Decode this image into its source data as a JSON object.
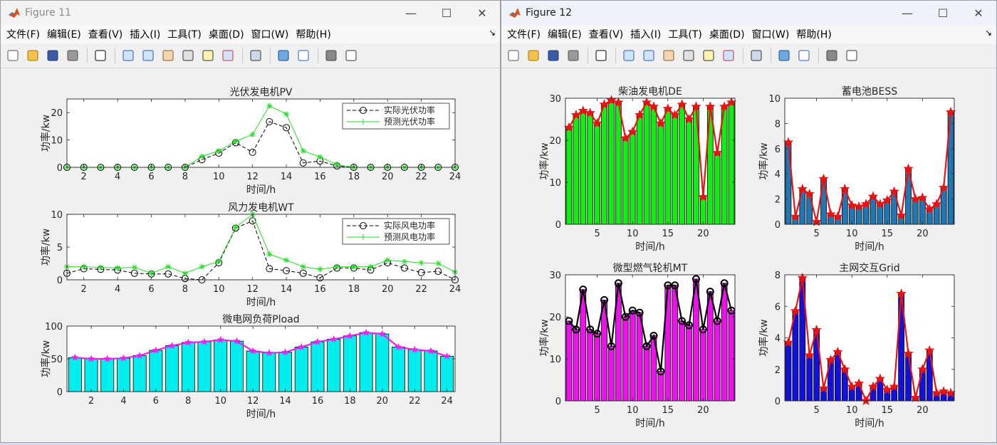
{
  "menu_items": [
    "文件(F)",
    "编辑(E)",
    "查看(V)",
    "插入(I)",
    "工具(T)",
    "桌面(D)",
    "窗口(W)",
    "帮助(H)"
  ],
  "caption_glyphs": {
    "minimize": "—",
    "maximize": "☐",
    "close": "✕"
  },
  "dock_glyph": "↘",
  "fig11": {
    "title": "Figure 11",
    "charts": {
      "pv": {
        "type": "line",
        "title": "光伏发电机PV",
        "xlabel": "时间/h",
        "ylabel": "功率/kw",
        "xlim": [
          1,
          24
        ],
        "ylim": [
          0,
          25
        ],
        "xticks": [
          2,
          4,
          6,
          8,
          10,
          12,
          14,
          16,
          18,
          20,
          22,
          24
        ],
        "yticks": [
          0,
          10,
          20
        ],
        "legend_position": "top-right",
        "x": [
          1,
          2,
          3,
          4,
          5,
          6,
          7,
          8,
          9,
          10,
          11,
          12,
          13,
          14,
          15,
          16,
          17,
          18,
          19,
          20,
          21,
          22,
          23,
          24
        ],
        "series": [
          {
            "name": "实际光伏功率",
            "color": "#000000",
            "dashed": true,
            "marker": "circle",
            "values": [
              0,
              0,
              0,
              0,
              0,
              0,
              0,
              0,
              2.8,
              5.2,
              9,
              5.5,
              16.7,
              14.5,
              1.6,
              2.3,
              0.5,
              0,
              0,
              0,
              0,
              0,
              0,
              0
            ]
          },
          {
            "name": "预测光伏功率",
            "color": "#22dd22",
            "dashed": false,
            "marker": "star",
            "values": [
              0,
              0,
              0,
              0,
              0,
              0,
              0,
              0,
              4,
              6,
              9.5,
              12,
              22.5,
              19.5,
              6,
              3.8,
              1,
              0,
              0,
              0,
              0,
              0,
              0,
              0
            ]
          }
        ]
      },
      "wt": {
        "type": "line",
        "title": "风力发电机WT",
        "xlabel": "时间/h",
        "ylabel": "功率/kw",
        "xlim": [
          1,
          24
        ],
        "ylim": [
          0,
          10
        ],
        "xticks": [
          2,
          4,
          6,
          8,
          10,
          12,
          14,
          16,
          18,
          20,
          22,
          24
        ],
        "yticks": [
          0,
          5,
          10
        ],
        "legend_position": "top-right",
        "x": [
          1,
          2,
          3,
          4,
          5,
          6,
          7,
          8,
          9,
          10,
          11,
          12,
          13,
          14,
          15,
          16,
          17,
          18,
          19,
          20,
          21,
          22,
          23,
          24
        ],
        "series": [
          {
            "name": "实际风电功率",
            "color": "#000000",
            "dashed": true,
            "marker": "circle",
            "values": [
              1,
              1.7,
              1.6,
              1.5,
              1,
              0.9,
              0.9,
              0.2,
              0,
              2.6,
              7.9,
              9,
              1.7,
              1.4,
              1,
              0.3,
              1.8,
              1.8,
              1.5,
              2.6,
              1.8,
              1.1,
              1.3,
              0
            ]
          },
          {
            "name": "预测风电功率",
            "color": "#22dd22",
            "dashed": false,
            "marker": "star",
            "values": [
              2,
              2,
              1.9,
              1.8,
              1.9,
              1,
              2,
              1,
              2,
              2.8,
              8,
              10,
              3.9,
              3,
              2,
              1.6,
              2,
              2,
              2,
              3,
              2.8,
              2.6,
              2.5,
              1.2
            ]
          }
        ]
      },
      "pload": {
        "type": "bar",
        "title": "微电网负荷Pload",
        "xlabel": "时间/h",
        "ylabel": "功率/kw",
        "xlim": [
          0.5,
          24.5
        ],
        "ylim": [
          0,
          100
        ],
        "xticks": [
          2,
          4,
          6,
          8,
          10,
          12,
          14,
          16,
          18,
          20,
          22,
          24
        ],
        "yticks": [
          0,
          50,
          100
        ],
        "bar_color": "#00eeee",
        "line_color": "#ee22ee",
        "x": [
          1,
          2,
          3,
          4,
          5,
          6,
          7,
          8,
          9,
          10,
          11,
          12,
          13,
          14,
          15,
          16,
          17,
          18,
          19,
          20,
          21,
          22,
          23,
          24
        ],
        "values": [
          52,
          50,
          50,
          51,
          55,
          63,
          70,
          75,
          76,
          79,
          77,
          62,
          59,
          60,
          68,
          76,
          80,
          85,
          90,
          88,
          68,
          64,
          62,
          54
        ]
      }
    }
  },
  "fig12": {
    "title": "Figure 12",
    "charts": {
      "de": {
        "type": "bar",
        "title": "柴油发电机DE",
        "xlabel": "时间/h",
        "ylabel": "功率/kw",
        "xlim": [
          0.5,
          24.5
        ],
        "ylim": [
          0,
          30
        ],
        "xticks": [
          5,
          10,
          15,
          20
        ],
        "yticks": [
          0,
          10,
          20,
          30
        ],
        "bar_color": "#11ee11",
        "line_color": "#ee1111",
        "x": [
          1,
          2,
          3,
          4,
          5,
          6,
          7,
          8,
          9,
          10,
          11,
          12,
          13,
          14,
          15,
          16,
          17,
          18,
          19,
          20,
          21,
          22,
          23,
          24
        ],
        "values": [
          23,
          26,
          27,
          26.5,
          24,
          28.5,
          29.5,
          29,
          20.5,
          22,
          26,
          29,
          28,
          24,
          27.5,
          26,
          28.5,
          25,
          28,
          6.5,
          28,
          17,
          28,
          29
        ]
      },
      "bess": {
        "type": "bar",
        "title": "蓄电池BESS",
        "xlabel": "时间/h",
        "ylabel": "功率/kw",
        "xlim": [
          0.5,
          24.5
        ],
        "ylim": [
          0,
          10
        ],
        "xticks": [
          5,
          10,
          15,
          20
        ],
        "yticks": [
          0,
          2,
          4,
          6,
          8,
          10
        ],
        "bar_color": "#1f77b4",
        "line_color": "#ee1111",
        "x": [
          1,
          2,
          3,
          4,
          5,
          6,
          7,
          8,
          9,
          10,
          11,
          12,
          13,
          14,
          15,
          16,
          17,
          18,
          19,
          20,
          21,
          22,
          23,
          24
        ],
        "values": [
          6.5,
          0.6,
          2.8,
          2.4,
          0.2,
          3.6,
          0.8,
          0.6,
          2.8,
          1.5,
          1.4,
          1.6,
          2.2,
          1.6,
          1.9,
          2.6,
          0.7,
          4.4,
          2,
          2.1,
          1.2,
          1.6,
          2.9,
          8.9
        ]
      },
      "mt": {
        "type": "bar",
        "title": "微型燃气轮机MT",
        "xlabel": "时间/h",
        "ylabel": "功率/kw",
        "xlim": [
          0.5,
          24.5
        ],
        "ylim": [
          0,
          30
        ],
        "xticks": [
          5,
          10,
          15,
          20
        ],
        "yticks": [
          0,
          10,
          20,
          30
        ],
        "bar_color": "#ee11ee",
        "line_color": "#000000",
        "x": [
          1,
          2,
          3,
          4,
          5,
          6,
          7,
          8,
          9,
          10,
          11,
          12,
          13,
          14,
          15,
          16,
          17,
          18,
          19,
          20,
          21,
          22,
          23,
          24
        ],
        "values": [
          19,
          17,
          26.5,
          17,
          16,
          24,
          13,
          28,
          20,
          21.5,
          21,
          13,
          15.5,
          7,
          27.5,
          27.5,
          19,
          18,
          29,
          17,
          26,
          19,
          28,
          21.5
        ]
      },
      "grid": {
        "type": "bar",
        "title": "主网交互Grid",
        "xlabel": "时间/h",
        "ylabel": "功率/kw",
        "xlim": [
          0.5,
          24.5
        ],
        "ylim": [
          0,
          8
        ],
        "xticks": [
          5,
          10,
          15,
          20
        ],
        "yticks": [
          0,
          2,
          4,
          6,
          8
        ],
        "bar_color": "#1111dd",
        "line_color": "#ee1111",
        "x": [
          1,
          2,
          3,
          4,
          5,
          6,
          7,
          8,
          9,
          10,
          11,
          12,
          13,
          14,
          15,
          16,
          17,
          18,
          19,
          20,
          21,
          22,
          23,
          24
        ],
        "values": [
          3.7,
          5.7,
          7.8,
          2.9,
          4.5,
          0.8,
          2.6,
          3.1,
          2,
          0.9,
          1.1,
          0,
          0.9,
          1.4,
          0.7,
          0.9,
          6.8,
          3,
          0.2,
          2,
          3.2,
          0.5,
          0.6,
          0.5
        ]
      }
    }
  }
}
